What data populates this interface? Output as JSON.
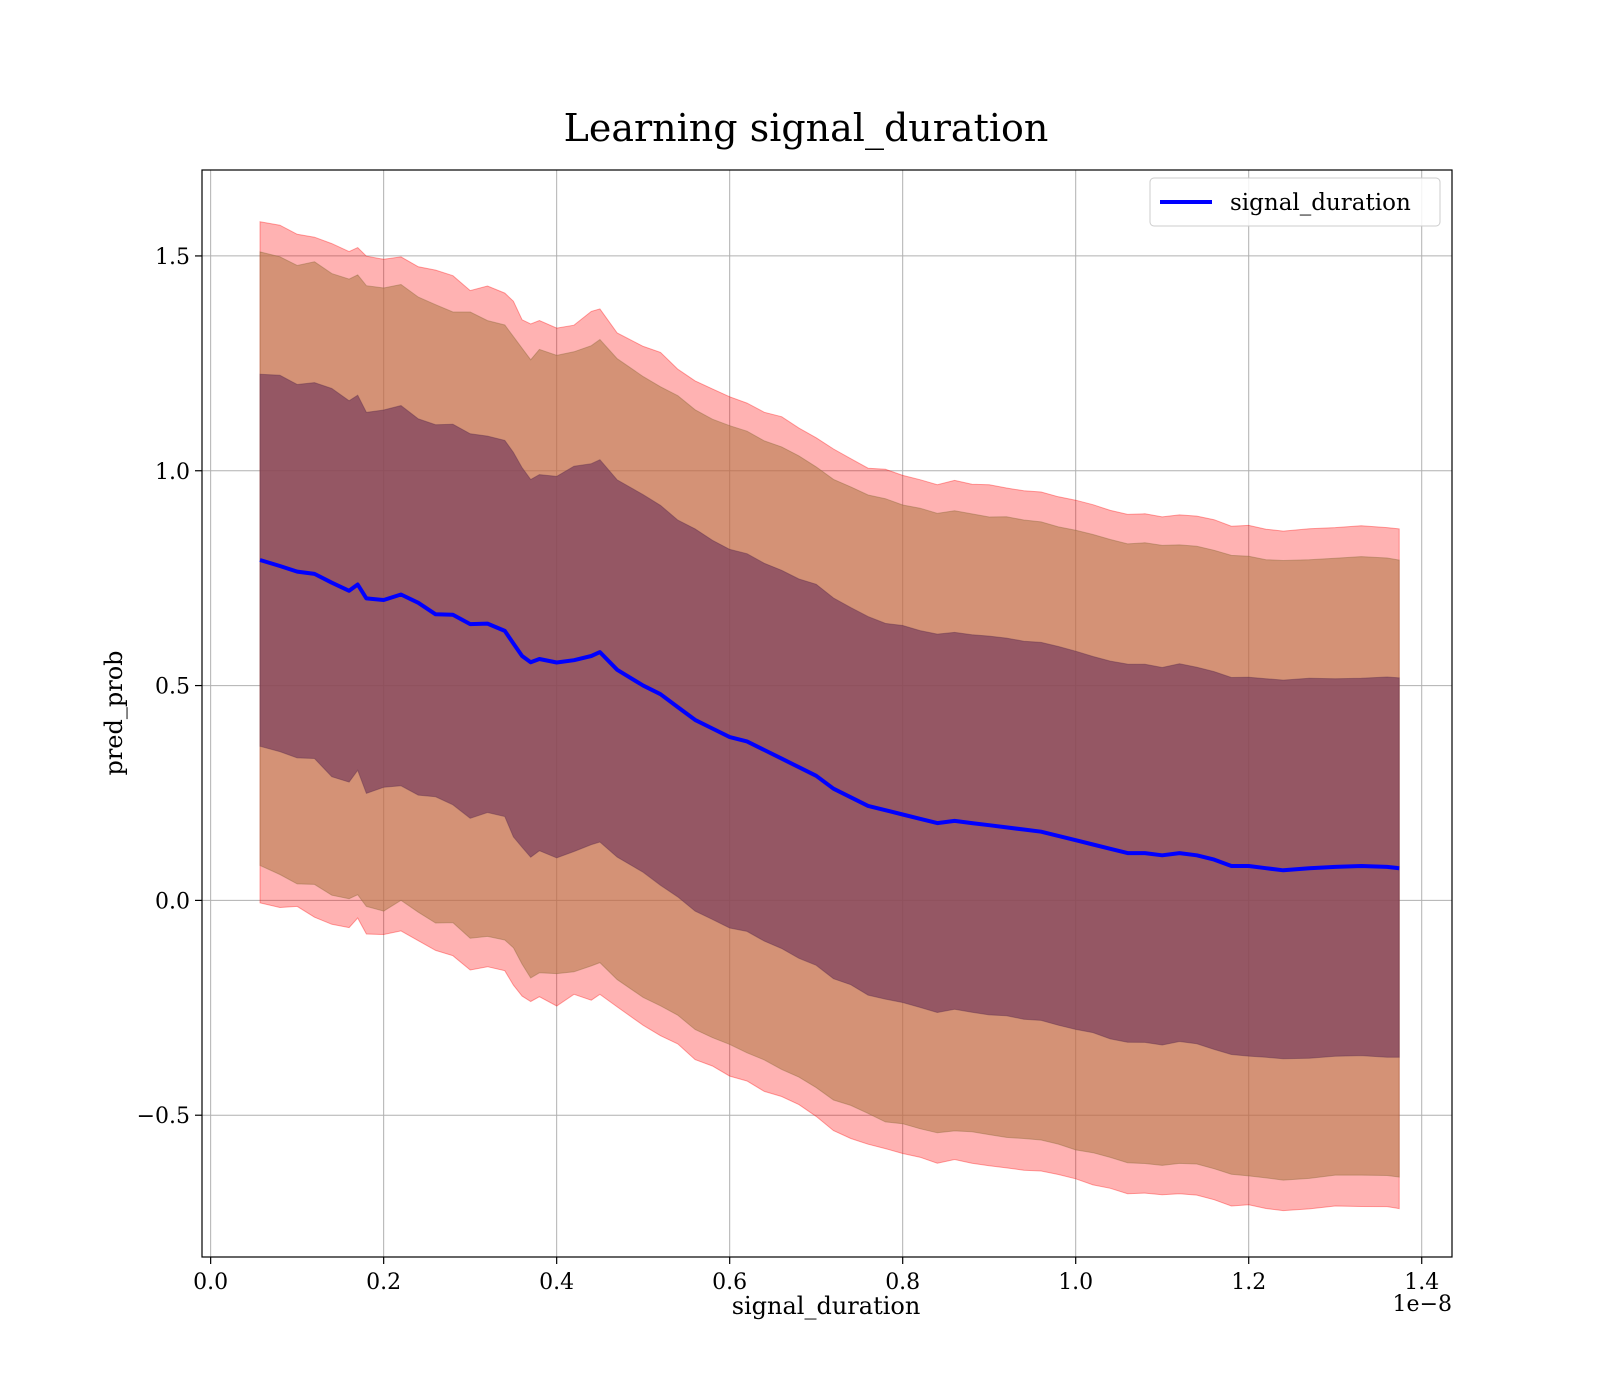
{
  "chart_data": {
    "type": "line",
    "title": "Learning signal_duration",
    "xlabel": "signal_duration",
    "ylabel": "pred_prob",
    "x_offset_label": "1e−8",
    "xlim": [
      -0.01,
      1.435
    ],
    "ylim": [
      -0.83,
      1.7
    ],
    "x_ticks": [
      0.0,
      0.2,
      0.4,
      0.6,
      0.8,
      1.0,
      1.2,
      1.4
    ],
    "x_tick_labels": [
      "0.0",
      "0.2",
      "0.4",
      "0.6",
      "0.8",
      "1.0",
      "1.2",
      "1.4"
    ],
    "y_ticks": [
      -0.5,
      0.0,
      0.5,
      1.0,
      1.5
    ],
    "y_tick_labels": [
      "−0.5",
      "0.0",
      "0.5",
      "1.0",
      "1.5"
    ],
    "grid": true,
    "legend_position": "top-right",
    "colors": {
      "mean_line": "#0000ff",
      "outer_band": "#ff0000",
      "inner_band": "#7a3e5c"
    },
    "series": [
      {
        "name": "signal_duration",
        "x": [
          0.057,
          0.08,
          0.1,
          0.12,
          0.14,
          0.16,
          0.17,
          0.18,
          0.2,
          0.22,
          0.24,
          0.26,
          0.28,
          0.3,
          0.32,
          0.34,
          0.35,
          0.36,
          0.37,
          0.38,
          0.4,
          0.42,
          0.44,
          0.45,
          0.47,
          0.5,
          0.52,
          0.54,
          0.56,
          0.58,
          0.6,
          0.62,
          0.64,
          0.66,
          0.68,
          0.7,
          0.72,
          0.74,
          0.76,
          0.78,
          0.8,
          0.82,
          0.84,
          0.86,
          0.88,
          0.9,
          0.92,
          0.94,
          0.96,
          0.98,
          1.0,
          1.02,
          1.04,
          1.06,
          1.08,
          1.1,
          1.12,
          1.14,
          1.16,
          1.18,
          1.2,
          1.22,
          1.24,
          1.27,
          1.3,
          1.33,
          1.36,
          1.374
        ],
        "y": [
          0.79,
          0.78,
          0.77,
          0.76,
          0.74,
          0.72,
          0.74,
          0.7,
          0.7,
          0.71,
          0.69,
          0.67,
          0.66,
          0.64,
          0.64,
          0.63,
          0.6,
          0.57,
          0.55,
          0.56,
          0.55,
          0.56,
          0.57,
          0.575,
          0.54,
          0.5,
          0.48,
          0.45,
          0.42,
          0.4,
          0.38,
          0.37,
          0.35,
          0.33,
          0.31,
          0.29,
          0.26,
          0.24,
          0.22,
          0.21,
          0.2,
          0.19,
          0.18,
          0.185,
          0.18,
          0.175,
          0.17,
          0.165,
          0.16,
          0.15,
          0.14,
          0.13,
          0.12,
          0.11,
          0.11,
          0.105,
          0.11,
          0.105,
          0.095,
          0.08,
          0.08,
          0.075,
          0.07,
          0.075,
          0.078,
          0.08,
          0.078,
          0.075
        ]
      }
    ],
    "band_half_width": {
      "inner": [
        0.44,
        0.44,
        0.44,
        0.44,
        0.44,
        0.44,
        0.44,
        0.44,
        0.44,
        0.44,
        0.44,
        0.44,
        0.44,
        0.44,
        0.44,
        0.44,
        0.44,
        0.44,
        0.44,
        0.44,
        0.44,
        0.44,
        0.44,
        0.44,
        0.44,
        0.44,
        0.44,
        0.44,
        0.44,
        0.44,
        0.44,
        0.44,
        0.44,
        0.44,
        0.44,
        0.44,
        0.44,
        0.44,
        0.44,
        0.44,
        0.44,
        0.44,
        0.44,
        0.44,
        0.44,
        0.44,
        0.44,
        0.44,
        0.44,
        0.44,
        0.44,
        0.44,
        0.44,
        0.44,
        0.44,
        0.44,
        0.44,
        0.44,
        0.44,
        0.44,
        0.44,
        0.44,
        0.44,
        0.44,
        0.44,
        0.44,
        0.44,
        0.44
      ],
      "middle": [
        0.72,
        0.72,
        0.72,
        0.72,
        0.72,
        0.72,
        0.72,
        0.72,
        0.72,
        0.72,
        0.72,
        0.72,
        0.72,
        0.72,
        0.72,
        0.72,
        0.72,
        0.72,
        0.72,
        0.72,
        0.72,
        0.72,
        0.72,
        0.72,
        0.72,
        0.72,
        0.72,
        0.72,
        0.72,
        0.72,
        0.72,
        0.72,
        0.72,
        0.72,
        0.72,
        0.72,
        0.72,
        0.72,
        0.72,
        0.72,
        0.72,
        0.72,
        0.72,
        0.72,
        0.72,
        0.72,
        0.72,
        0.72,
        0.72,
        0.72,
        0.72,
        0.72,
        0.72,
        0.72,
        0.72,
        0.72,
        0.72,
        0.72,
        0.72,
        0.72,
        0.72,
        0.72,
        0.72,
        0.72,
        0.72,
        0.72,
        0.72,
        0.72
      ],
      "outer": [
        0.79,
        0.79,
        0.79,
        0.79,
        0.79,
        0.79,
        0.79,
        0.79,
        0.79,
        0.79,
        0.79,
        0.79,
        0.79,
        0.79,
        0.79,
        0.79,
        0.79,
        0.79,
        0.79,
        0.79,
        0.79,
        0.79,
        0.79,
        0.79,
        0.79,
        0.79,
        0.79,
        0.79,
        0.79,
        0.79,
        0.79,
        0.79,
        0.79,
        0.79,
        0.79,
        0.79,
        0.79,
        0.79,
        0.79,
        0.79,
        0.79,
        0.79,
        0.79,
        0.79,
        0.79,
        0.79,
        0.79,
        0.79,
        0.79,
        0.79,
        0.79,
        0.79,
        0.79,
        0.79,
        0.79,
        0.79,
        0.79,
        0.79,
        0.79,
        0.79,
        0.79,
        0.79,
        0.79,
        0.79,
        0.79,
        0.79,
        0.79,
        0.79
      ]
    }
  }
}
